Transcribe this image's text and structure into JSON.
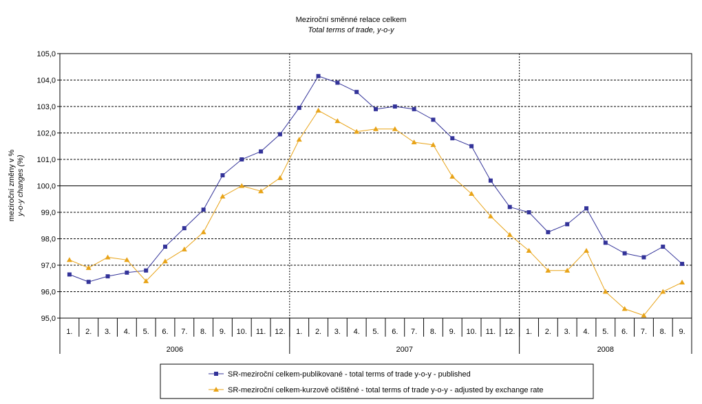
{
  "chart_data": {
    "type": "line",
    "title": "Meziroční směnné relace celkem",
    "subtitle": "Total terms of trade, y-o-y",
    "ylabel": "meziroční změny v %",
    "ylabel2": "y-o-y changes (%)",
    "ylim": [
      95,
      105
    ],
    "yticks": [
      "95,0",
      "96,0",
      "97,0",
      "98,0",
      "99,0",
      "100,0",
      "101,0",
      "102,0",
      "103,0",
      "104,0",
      "105,0"
    ],
    "years": [
      {
        "label": "2006",
        "months": 12
      },
      {
        "label": "2007",
        "months": 12
      },
      {
        "label": "2008",
        "months": 9
      }
    ],
    "categories": [
      "1.",
      "2.",
      "3.",
      "4.",
      "5.",
      "6.",
      "7.",
      "8.",
      "9.",
      "10.",
      "11.",
      "12.",
      "1.",
      "2.",
      "3.",
      "4.",
      "5.",
      "6.",
      "7.",
      "8.",
      "9.",
      "10.",
      "11.",
      "12.",
      "1.",
      "2.",
      "3.",
      "4.",
      "5.",
      "6.",
      "7.",
      "8.",
      "9."
    ],
    "series": [
      {
        "name": "SR-meziroční celkem-publikované - total terms of trade y-o-y - published",
        "color": "#333399",
        "marker": "square",
        "values": [
          96.65,
          96.37,
          96.58,
          96.72,
          96.8,
          97.7,
          98.4,
          99.1,
          100.4,
          101.0,
          101.3,
          101.95,
          102.95,
          104.15,
          103.9,
          103.55,
          102.9,
          103.0,
          102.9,
          102.5,
          101.8,
          101.5,
          100.2,
          99.2,
          99.0,
          98.25,
          98.55,
          99.15,
          97.85,
          97.45,
          97.3,
          97.7,
          97.05
        ]
      },
      {
        "name": "SR-meziroční celkem-kurzově očištěné - total terms of trade y-o-y - adjusted by exchange rate",
        "color": "#E8A317",
        "marker": "triangle",
        "values": [
          97.2,
          96.9,
          97.3,
          97.2,
          96.4,
          97.15,
          97.6,
          98.25,
          99.6,
          100.0,
          99.8,
          100.3,
          101.75,
          102.85,
          102.45,
          102.05,
          102.15,
          102.15,
          101.65,
          101.55,
          100.35,
          99.7,
          98.85,
          98.15,
          97.55,
          96.8,
          96.8,
          97.55,
          96.0,
          95.35,
          95.1,
          96.0,
          96.35
        ]
      }
    ]
  }
}
